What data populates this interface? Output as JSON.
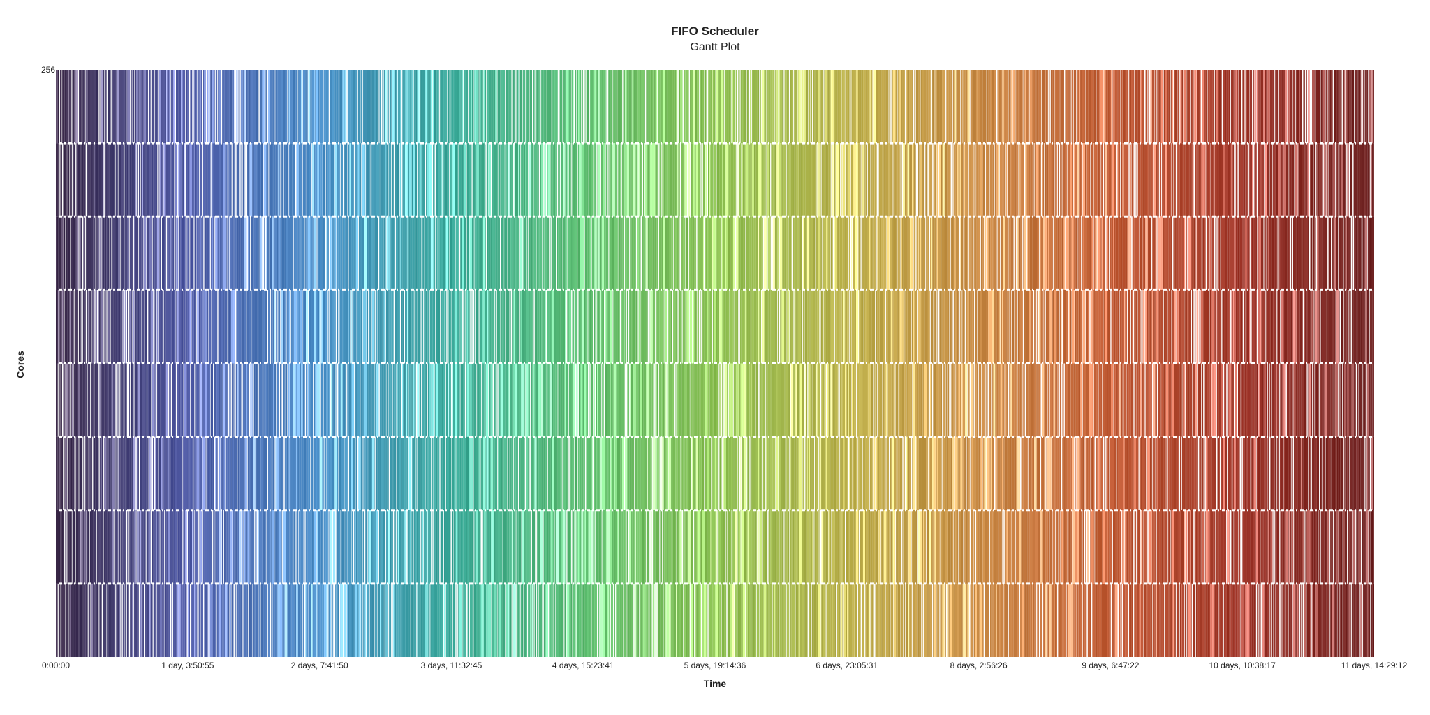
{
  "chart_data": {
    "type": "gantt",
    "title": "FIFO Scheduler",
    "subtitle": "Gantt Plot",
    "xlabel": "Time",
    "ylabel": "Cores",
    "x_unit": "seconds",
    "xlim": [
      0,
      1002552
    ],
    "ylim": [
      0,
      256
    ],
    "x_ticks": [
      {
        "value": 0,
        "label": "0:00:00"
      },
      {
        "value": 100255,
        "label": "1 day, 3:50:55"
      },
      {
        "value": 200510,
        "label": "2 days, 7:41:50"
      },
      {
        "value": 300765,
        "label": "3 days, 11:32:45"
      },
      {
        "value": 401021,
        "label": "4 days, 15:23:41"
      },
      {
        "value": 501276,
        "label": "5 days, 19:14:36"
      },
      {
        "value": 601531,
        "label": "6 days, 23:05:31"
      },
      {
        "value": 701786,
        "label": "8 days, 2:56:26"
      },
      {
        "value": 802042,
        "label": "9 days, 6:47:22"
      },
      {
        "value": 902297,
        "label": "10 days, 10:38:17"
      },
      {
        "value": 1002552,
        "label": "11 days, 14:29:12"
      }
    ],
    "y_ticks": [
      {
        "value": 256,
        "label": "256"
      }
    ],
    "core_groups": [
      {
        "cores": [
          0,
          32
        ]
      },
      {
        "cores": [
          32,
          64
        ]
      },
      {
        "cores": [
          64,
          96
        ]
      },
      {
        "cores": [
          96,
          128
        ]
      },
      {
        "cores": [
          128,
          160
        ]
      },
      {
        "cores": [
          160,
          192
        ]
      },
      {
        "cores": [
          192,
          224
        ]
      },
      {
        "cores": [
          224,
          256
        ]
      }
    ],
    "job_color_gradient": [
      "#3d2b4a",
      "#4f5aa6",
      "#4a8fc9",
      "#3aaa9a",
      "#5cbd6f",
      "#8cc152",
      "#bcb04a",
      "#c98a45",
      "#c15a34",
      "#9e3428",
      "#6e2424"
    ],
    "grid": false,
    "legend": "none"
  }
}
